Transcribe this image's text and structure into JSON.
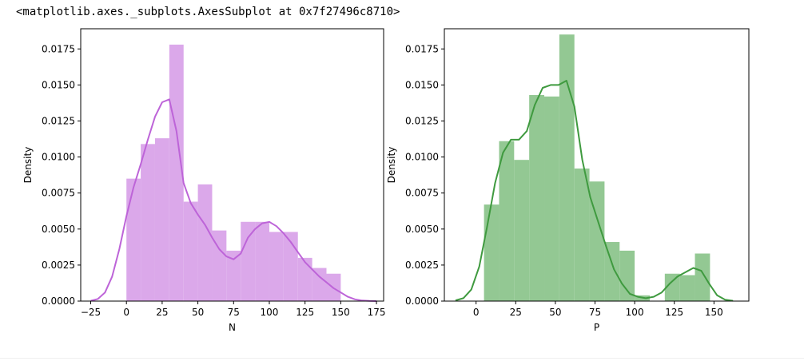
{
  "output_text": "<matplotlib.axes._subplots.AxesSubplot at 0x7f27496c8710>",
  "colors": {
    "bar_left": "#dba8ea",
    "curve_left": "#bd64d8",
    "bar_right": "#93c893",
    "curve_right": "#3f9a3f",
    "axis": "#000000"
  },
  "chart_data": [
    {
      "type": "bar",
      "title": "",
      "xlabel": "N",
      "ylabel": "Density",
      "xlim": [
        -32,
        180
      ],
      "ylim": [
        0,
        0.0189
      ],
      "xticks": [
        "−25",
        "0",
        "25",
        "50",
        "75",
        "100",
        "125",
        "150",
        "175"
      ],
      "xtick_values": [
        -25,
        0,
        25,
        50,
        75,
        100,
        125,
        150,
        175
      ],
      "yticks": [
        "0.0000",
        "0.0025",
        "0.0050",
        "0.0075",
        "0.0100",
        "0.0125",
        "0.0150",
        "0.0175"
      ],
      "ytick_values": [
        0,
        0.0025,
        0.005,
        0.0075,
        0.01,
        0.0125,
        0.015,
        0.0175
      ],
      "histogram": {
        "bin_edges": [
          0,
          10,
          20,
          30,
          40,
          50,
          60,
          70,
          80,
          90,
          100,
          110,
          120,
          130,
          140,
          150
        ],
        "density": [
          0.0085,
          0.0109,
          0.0113,
          0.0178,
          0.0069,
          0.0081,
          0.0049,
          0.0035,
          0.0055,
          0.0055,
          0.0048,
          0.0048,
          0.003,
          0.0023,
          0.0019
        ]
      },
      "kde": {
        "x": [
          -25,
          -20,
          -15,
          -10,
          -5,
          0,
          5,
          10,
          15,
          20,
          25,
          30,
          35,
          40,
          45,
          50,
          55,
          60,
          65,
          70,
          75,
          80,
          85,
          90,
          95,
          100,
          105,
          110,
          115,
          120,
          125,
          130,
          135,
          140,
          145,
          150,
          155,
          160,
          165,
          170,
          175
        ],
        "y": [
          2e-05,
          0.00015,
          0.0006,
          0.0017,
          0.0036,
          0.0059,
          0.0079,
          0.0095,
          0.0112,
          0.0128,
          0.0138,
          0.014,
          0.0118,
          0.0082,
          0.0068,
          0.006,
          0.0053,
          0.0044,
          0.0036,
          0.0031,
          0.0029,
          0.0033,
          0.0044,
          0.005,
          0.0054,
          0.0055,
          0.0052,
          0.0047,
          0.0041,
          0.0034,
          0.0027,
          0.0022,
          0.0017,
          0.0013,
          0.0009,
          0.0006,
          0.0003,
          0.00012,
          4e-05,
          1e-05,
          0.0
        ]
      }
    },
    {
      "type": "bar",
      "title": "",
      "xlabel": "P",
      "ylabel": "Density",
      "xlim": [
        -20,
        172
      ],
      "ylim": [
        0,
        0.0189
      ],
      "xticks": [
        "0",
        "25",
        "50",
        "75",
        "100",
        "125",
        "150"
      ],
      "xtick_values": [
        0,
        25,
        50,
        75,
        100,
        125,
        150
      ],
      "yticks": [
        "0.0000",
        "0.0025",
        "0.0050",
        "0.0075",
        "0.0100",
        "0.0125",
        "0.0150",
        "0.0175"
      ],
      "ytick_values": [
        0,
        0.0025,
        0.005,
        0.0075,
        0.01,
        0.0125,
        0.015,
        0.0175
      ],
      "histogram": {
        "bin_edges": [
          5,
          14.5,
          24,
          33.5,
          43,
          52.5,
          62,
          71.5,
          81,
          90.5,
          100,
          109.5,
          119,
          128.5,
          138,
          147.5
        ],
        "density": [
          0.0067,
          0.0111,
          0.0098,
          0.0143,
          0.0142,
          0.0185,
          0.0092,
          0.0083,
          0.0041,
          0.0035,
          0.0004,
          0.0,
          0.0019,
          0.0018,
          0.0033
        ]
      },
      "kde": {
        "x": [
          -13,
          -8,
          -3,
          2,
          7,
          12,
          17,
          22,
          27,
          32,
          37,
          42,
          47,
          52,
          57,
          62,
          67,
          72,
          77,
          82,
          87,
          92,
          97,
          102,
          107,
          112,
          117,
          122,
          127,
          132,
          137,
          142,
          147,
          152,
          157,
          162
        ],
        "y": [
          5e-05,
          0.0002,
          0.0008,
          0.0024,
          0.0052,
          0.0082,
          0.0103,
          0.0112,
          0.0112,
          0.0118,
          0.0136,
          0.0148,
          0.015,
          0.015,
          0.0153,
          0.0135,
          0.0098,
          0.0072,
          0.0055,
          0.0038,
          0.0022,
          0.0012,
          0.0005,
          0.0003,
          0.0002,
          0.0003,
          0.0006,
          0.0012,
          0.0017,
          0.002,
          0.0023,
          0.0021,
          0.0012,
          0.0004,
          0.0001,
          2e-05
        ]
      }
    }
  ]
}
